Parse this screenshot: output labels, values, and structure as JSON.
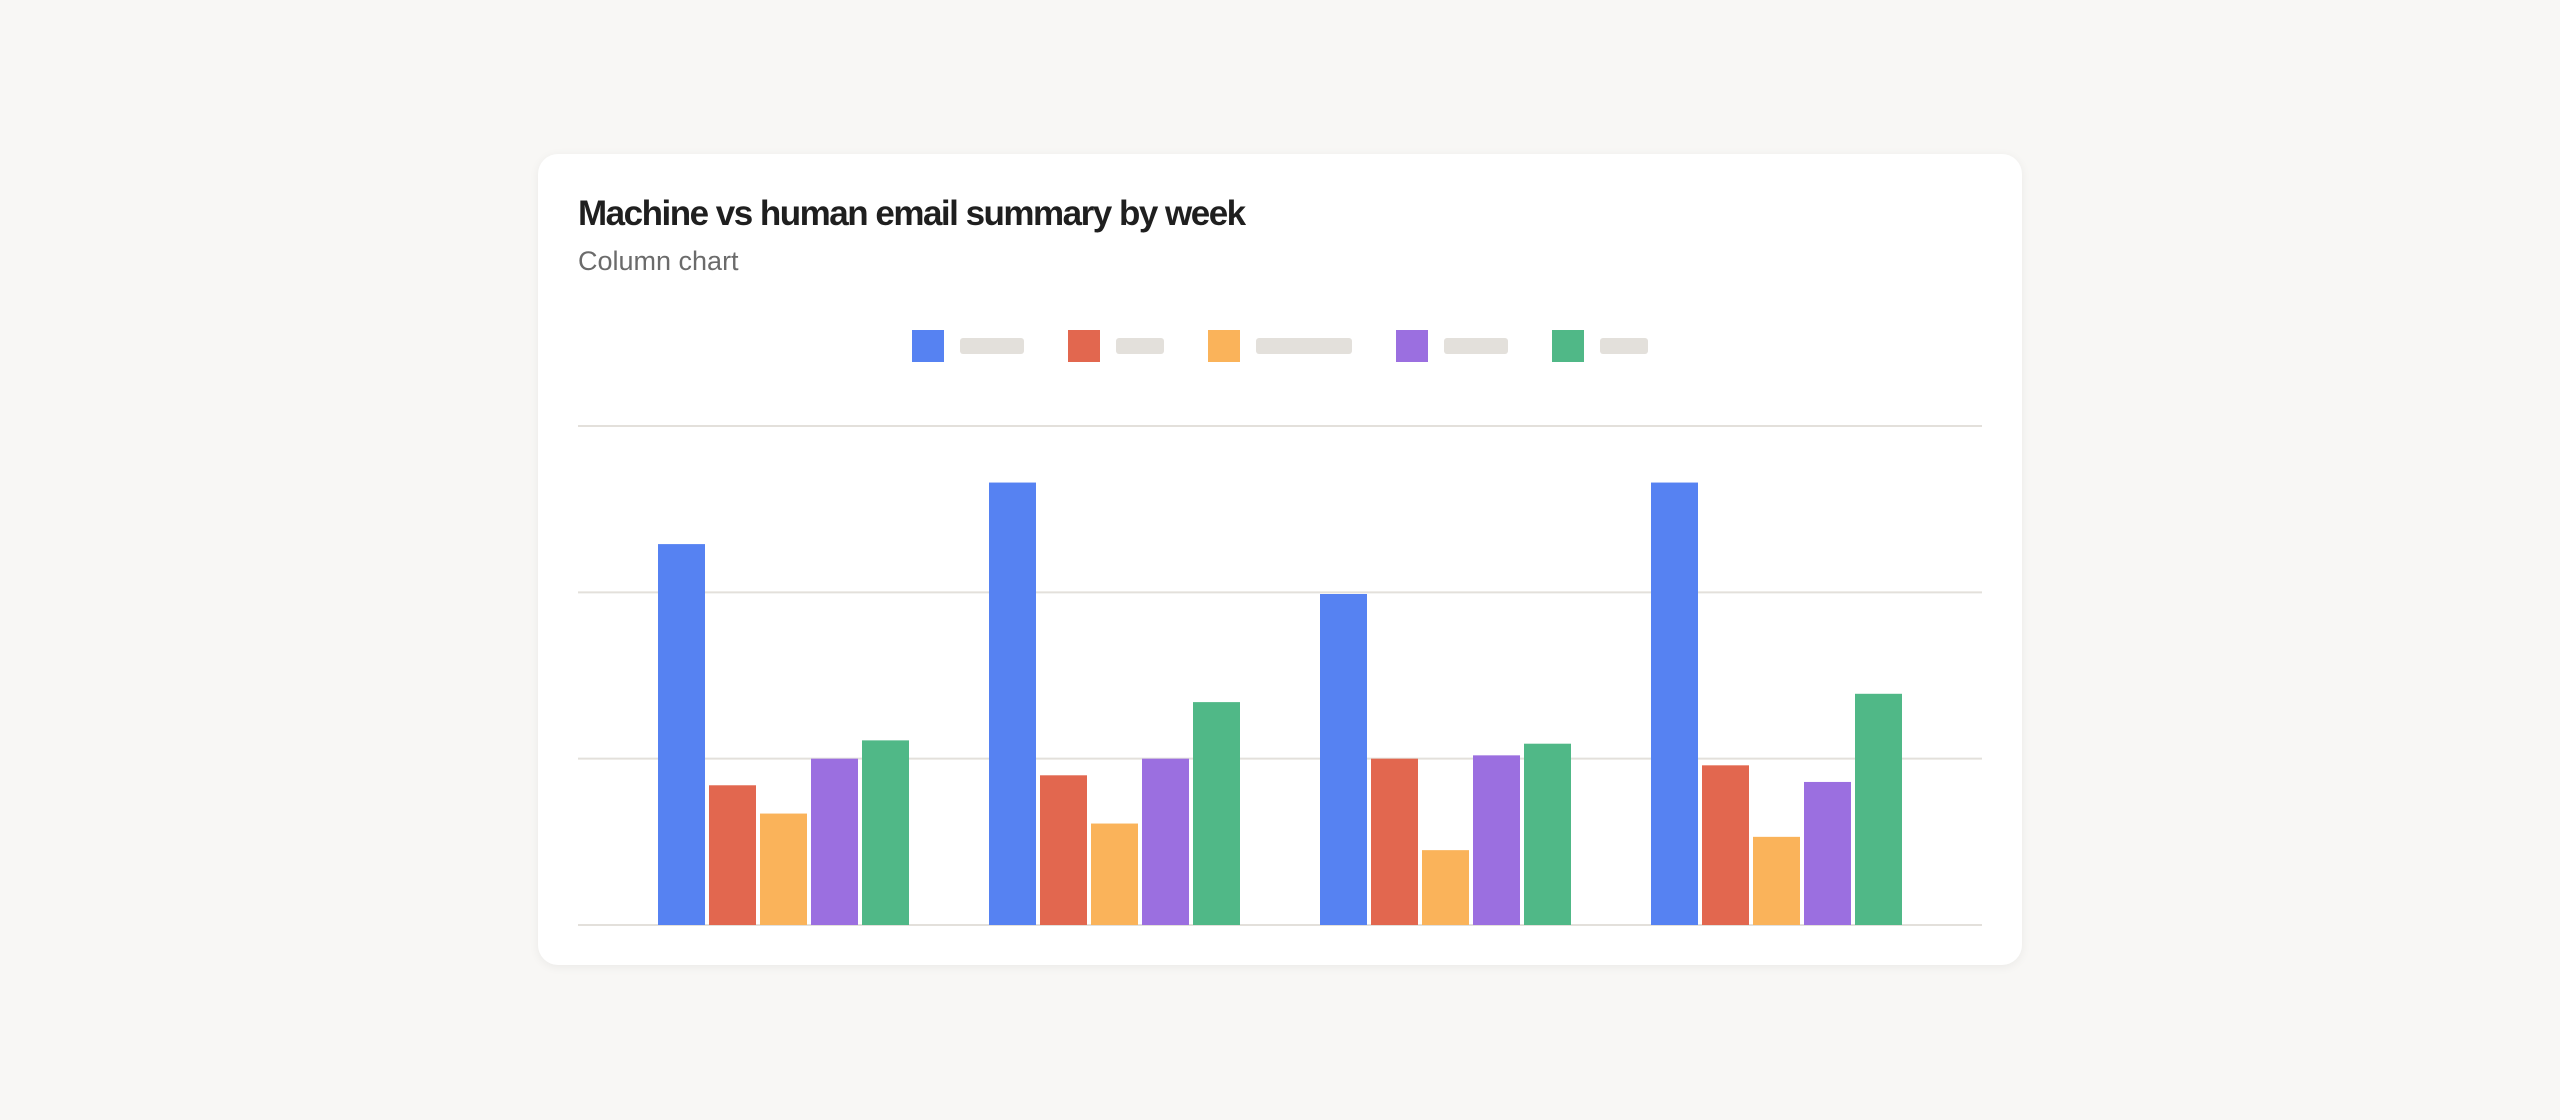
{
  "title": "Machine vs human email summary by week",
  "subtitle": "Column chart",
  "colors": {
    "background": "#f8f7f5",
    "grid": "#e3e0db",
    "series": [
      "#5682f2",
      "#e2674f",
      "#fab35a",
      "#9b6fe0",
      "#50b887"
    ]
  },
  "chart_data": {
    "type": "bar",
    "title": "Machine vs human email summary by week",
    "subtitle": "Column chart",
    "categories": [
      "",
      "",
      "",
      ""
    ],
    "series": [
      {
        "color": "#5682f2",
        "values": [
          2.29,
          2.66,
          1.99,
          2.66
        ]
      },
      {
        "color": "#e2674f",
        "values": [
          0.84,
          0.9,
          1.0,
          0.96
        ]
      },
      {
        "color": "#fab35a",
        "values": [
          0.67,
          0.61,
          0.45,
          0.53
        ]
      },
      {
        "color": "#9b6fe0",
        "values": [
          1.0,
          1.0,
          1.02,
          0.86
        ]
      },
      {
        "color": "#50b887",
        "values": [
          1.11,
          1.34,
          1.09,
          1.39
        ]
      }
    ],
    "ylim": [
      0,
      3
    ],
    "yticks": [
      0,
      1,
      2,
      3
    ],
    "grid": true,
    "axis_labels_shown": false,
    "legend_placement": "top-center",
    "legend_labels_shown": false
  }
}
